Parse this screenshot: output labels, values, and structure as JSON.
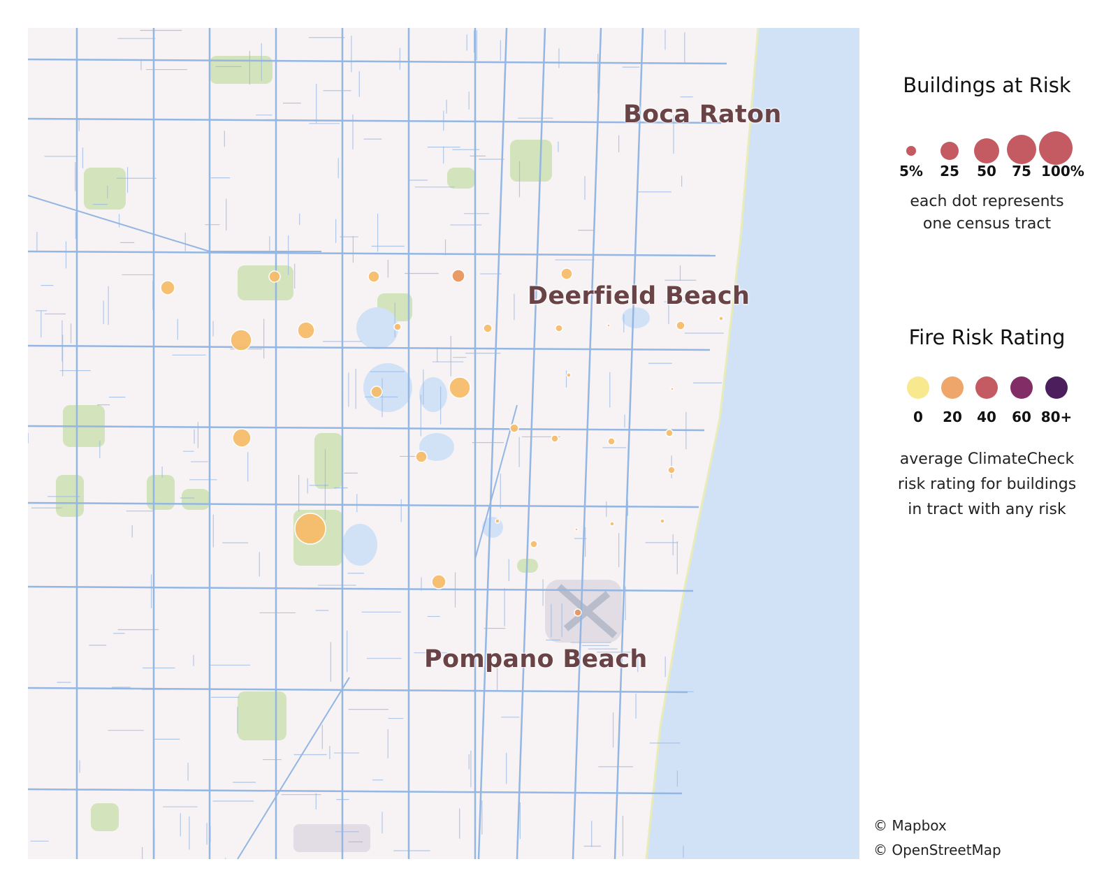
{
  "map": {
    "cities": [
      "Boca Raton",
      "Deerfield Beach",
      "Pompano Beach"
    ]
  },
  "legend": {
    "size": {
      "title": "Buildings at Risk",
      "labels": [
        "5%",
        "25",
        "50",
        "75",
        "100%"
      ],
      "values": [
        5,
        25,
        50,
        75,
        100
      ],
      "color": "#c45a62",
      "note": [
        "each dot represents",
        "one census tract"
      ]
    },
    "color": {
      "title": "Fire Risk Rating",
      "labels": [
        "0",
        "20",
        "40",
        "60",
        "80+"
      ],
      "values": [
        0,
        20,
        40,
        60,
        80
      ],
      "colors": [
        "#f8e98e",
        "#efa66a",
        "#c45a62",
        "#832d67",
        "#4c1e5c"
      ],
      "note": [
        "average ClimateCheck",
        "risk rating for buildings",
        "in tract with any risk"
      ]
    }
  },
  "attribution": [
    "© Mapbox",
    "© OpenStreetMap"
  ],
  "colors": {
    "land": "#f7f2f4",
    "road": "#93b6e3",
    "water": "#d2e2f6",
    "park": "#c9e0ae",
    "label": "#6a4346",
    "tract_fill": "#f6bd6a",
    "tract_fill_high": "#e9965e"
  }
}
